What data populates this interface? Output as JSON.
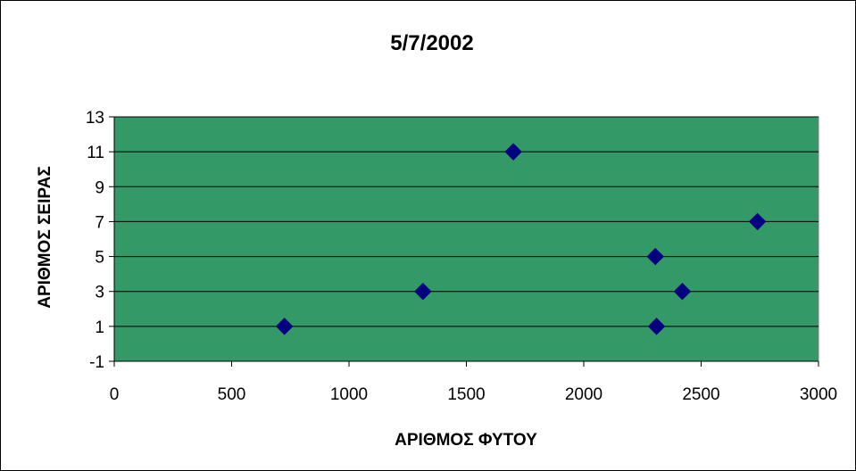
{
  "chart_data": {
    "type": "scatter",
    "title": "5/7/2002",
    "xlabel": "ΑΡΙΘΜΟΣ ΦΥΤΟΥ",
    "ylabel": "ΑΡΙΘΜΟΣ ΣΕΙΡΑΣ",
    "xlim": [
      0,
      3000
    ],
    "ylim": [
      -1,
      13
    ],
    "xticks": [
      0,
      500,
      1000,
      1500,
      2000,
      2500,
      3000
    ],
    "yticks": [
      -1,
      1,
      3,
      5,
      7,
      9,
      11,
      13
    ],
    "grid": "horizontal",
    "legend": "none",
    "plot_background": "#339966",
    "marker_color": "#000080",
    "marker": "diamond",
    "points": [
      {
        "x": 725,
        "y": 1
      },
      {
        "x": 1315,
        "y": 3
      },
      {
        "x": 1700,
        "y": 11
      },
      {
        "x": 2305,
        "y": 5
      },
      {
        "x": 2310,
        "y": 1
      },
      {
        "x": 2420,
        "y": 3
      },
      {
        "x": 2740,
        "y": 7
      }
    ]
  }
}
